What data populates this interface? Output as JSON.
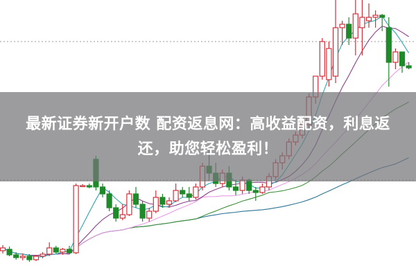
{
  "headline": "最新证券新开户数 配资返息网：高收益配资，利息返还，助您轻松盈利！",
  "chart_data": {
    "type": "candlestick",
    "title": "",
    "xlabel": "",
    "ylabel": "",
    "grid": false,
    "colors": {
      "up": "#d0303a",
      "down": "#1f8a2a",
      "ma5": "#2ea6b2",
      "ma10": "#8a3f8a",
      "ma20": "#e79be6",
      "ma30": "#3f8f3a",
      "ma60": "#2d7393"
    },
    "moving_averages": [
      5,
      10,
      20,
      30,
      60
    ],
    "ohlc": [
      [
        3.8,
        4.6,
        3.4,
        4.2
      ],
      [
        4.0,
        4.4,
        3.0,
        3.2
      ],
      [
        3.2,
        3.6,
        2.5,
        2.8
      ],
      [
        2.8,
        3.4,
        2.4,
        3.0
      ],
      [
        3.0,
        3.3,
        2.2,
        2.5
      ],
      [
        2.5,
        3.2,
        2.3,
        3.0
      ],
      [
        3.0,
        3.6,
        2.7,
        3.3
      ],
      [
        3.3,
        5.0,
        3.0,
        4.2
      ],
      [
        4.2,
        4.5,
        3.4,
        3.6
      ],
      [
        3.6,
        4.2,
        3.2,
        4.0
      ],
      [
        4.0,
        4.5,
        3.3,
        3.5
      ],
      [
        3.5,
        13.5,
        3.3,
        13.2
      ],
      [
        13.2,
        13.4,
        13.0,
        13.2
      ],
      [
        13.2,
        13.5,
        12.8,
        13.0
      ],
      [
        17.0,
        17.5,
        12.5,
        13.0
      ],
      [
        13.0,
        13.5,
        11.5,
        12.0
      ],
      [
        12.0,
        12.5,
        9.5,
        10.0
      ],
      [
        10.0,
        10.5,
        8.0,
        8.5
      ],
      [
        8.5,
        10.5,
        8.2,
        9.0
      ],
      [
        9.0,
        12.5,
        8.8,
        12.0
      ],
      [
        12.0,
        13.0,
        10.0,
        10.5
      ],
      [
        10.5,
        11.0,
        8.0,
        8.5
      ],
      [
        8.5,
        10.0,
        8.0,
        9.5
      ],
      [
        9.5,
        12.5,
        9.2,
        11.5
      ],
      [
        11.5,
        12.0,
        10.0,
        10.5
      ],
      [
        10.5,
        11.5,
        10.0,
        11.0
      ],
      [
        11.0,
        13.5,
        10.8,
        12.5
      ],
      [
        12.5,
        13.0,
        11.5,
        12.0
      ],
      [
        12.0,
        13.0,
        11.0,
        11.5
      ],
      [
        11.5,
        13.5,
        11.2,
        13.0
      ],
      [
        13.0,
        16.5,
        12.5,
        16.0
      ],
      [
        16.0,
        18.5,
        14.0,
        15.0
      ],
      [
        15.0,
        16.5,
        13.0,
        13.5
      ],
      [
        13.5,
        15.5,
        13.0,
        15.0
      ],
      [
        15.0,
        16.0,
        12.5,
        13.0
      ],
      [
        13.0,
        14.0,
        11.8,
        12.5
      ],
      [
        12.5,
        14.5,
        12.0,
        14.0
      ],
      [
        14.0,
        14.2,
        12.0,
        12.5
      ],
      [
        12.5,
        13.0,
        11.0,
        12.2
      ],
      [
        12.2,
        13.5,
        12.0,
        13.0
      ],
      [
        13.0,
        15.0,
        12.5,
        14.5
      ],
      [
        14.5,
        17.0,
        14.0,
        16.5
      ],
      [
        16.5,
        18.0,
        15.5,
        17.5
      ],
      [
        17.5,
        20.0,
        17.0,
        19.5
      ],
      [
        19.5,
        21.0,
        19.0,
        20.5
      ],
      [
        20.5,
        22.5,
        20.0,
        22.0
      ],
      [
        22.0,
        26.5,
        21.5,
        26.0
      ],
      [
        26.0,
        29.0,
        25.0,
        29.0
      ],
      [
        29.0,
        34.5,
        28.5,
        34.0
      ],
      [
        28.5,
        34.0,
        27.5,
        33.0
      ],
      [
        29.0,
        40.0,
        28.0,
        36.0
      ],
      [
        36.0,
        37.0,
        33.5,
        36.5
      ],
      [
        36.5,
        37.5,
        33.5,
        34.5
      ],
      [
        34.5,
        40.0,
        32.0,
        38.0
      ],
      [
        36.0,
        40.0,
        32.0,
        37.5
      ],
      [
        37.0,
        39.5,
        36.0,
        37.5
      ],
      [
        37.5,
        38.5,
        36.0,
        37.8
      ],
      [
        37.8,
        38.0,
        35.5,
        37.5
      ],
      [
        36.0,
        37.5,
        27.5,
        31.0
      ],
      [
        31.0,
        33.0,
        30.0,
        32.5
      ],
      [
        32.5,
        32.5,
        29.5,
        30.5
      ],
      [
        30.5,
        31.0,
        30.0,
        30.2
      ]
    ]
  }
}
